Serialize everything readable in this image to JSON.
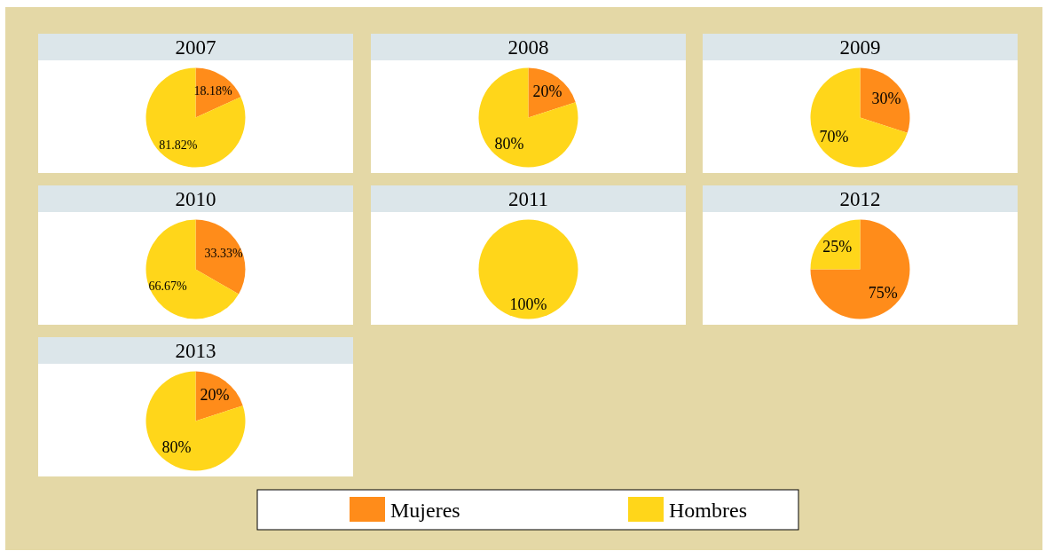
{
  "chart_data": [
    {
      "type": "pie",
      "title": "2007",
      "categories": [
        null,
        null
      ],
      "values": [
        18.18,
        81.82
      ],
      "colors": [
        "#ff8c1a",
        "#ffd61a"
      ],
      "value_labels": [
        "18.18%",
        "81.82%"
      ],
      "legend": false
    },
    {
      "type": "pie",
      "title": "2008",
      "categories": [
        null,
        null
      ],
      "values": [
        20,
        80
      ],
      "colors": [
        "#ff8c1a",
        "#ffd61a"
      ],
      "value_labels": [
        "20%",
        "80%"
      ],
      "legend": false
    },
    {
      "type": "pie",
      "title": "2009",
      "categories": [
        null,
        null
      ],
      "values": [
        30,
        70
      ],
      "colors": [
        "#ff8c1a",
        "#ffd61a"
      ],
      "value_labels": [
        "30%",
        "70%"
      ],
      "legend": false
    },
    {
      "type": "pie",
      "title": "2010",
      "categories": [
        null,
        null
      ],
      "values": [
        33.33,
        66.67
      ],
      "colors": [
        "#ff8c1a",
        "#ffd61a"
      ],
      "value_labels": [
        "33.33%",
        "66.67%"
      ],
      "legend": false
    },
    {
      "type": "pie",
      "title": "2011",
      "categories": [
        null,
        null
      ],
      "values": [
        0,
        100
      ],
      "colors": [
        "#ff8c1a",
        "#ffd61a"
      ],
      "value_labels": [
        null,
        "100%"
      ],
      "legend": false
    },
    {
      "type": "pie",
      "title": "2012",
      "categories": [
        null,
        null
      ],
      "values": [
        75,
        25
      ],
      "colors": [
        "#ff8c1a",
        "#ffd61a"
      ],
      "value_labels": [
        "75%",
        "25%"
      ],
      "legend": false
    },
    {
      "type": "pie",
      "title": "2013",
      "categories": [
        "Mujeres",
        "Hombres"
      ],
      "values": [
        20,
        80
      ],
      "colors": [
        "#ff8c1a",
        "#ffd61a"
      ],
      "value_labels": [
        "20%",
        "80%"
      ],
      "legend": "bottom"
    }
  ]
}
